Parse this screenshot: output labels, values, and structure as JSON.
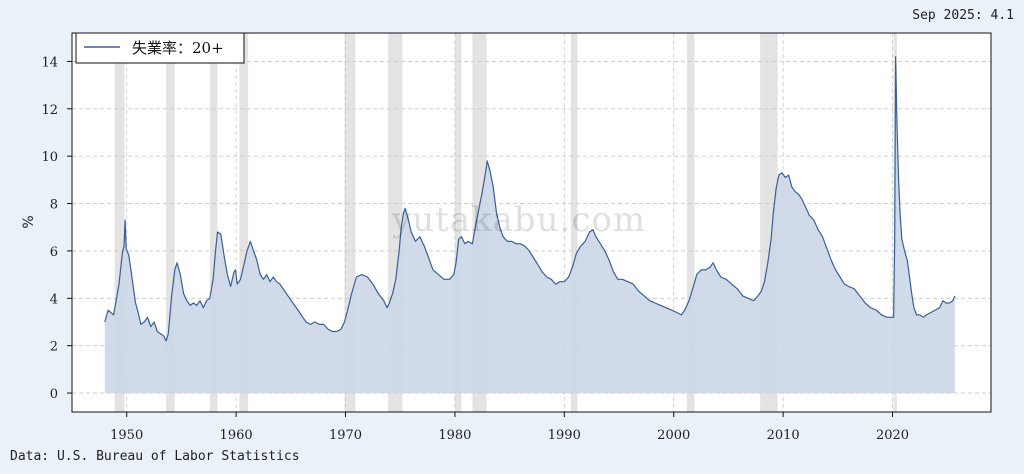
{
  "header": {
    "latest_reading": "Sep 2025: 4.1"
  },
  "footer": {
    "source": "Data: U.S. Bureau of Labor Statistics"
  },
  "watermark": "yutakabu.com",
  "colors": {
    "line": "#3a5f95",
    "fill": "#cbd6e6",
    "recession": "#e3e3e3",
    "background": "#eaf1f9"
  },
  "chart_data": {
    "type": "area",
    "ylabel": "%",
    "xlim": [
      1945,
      2029
    ],
    "ylim": [
      -0.8,
      15.2
    ],
    "x_ticks": [
      1950,
      1960,
      1970,
      1980,
      1990,
      2000,
      2010,
      2020
    ],
    "y_ticks": [
      0,
      2,
      4,
      6,
      8,
      10,
      12,
      14
    ],
    "legend": {
      "position": "top-left"
    },
    "grid": true,
    "recessions": [
      [
        1948.9,
        1949.8
      ],
      [
        1953.6,
        1954.4
      ],
      [
        1957.6,
        1958.3
      ],
      [
        1960.3,
        1961.1
      ],
      [
        1969.9,
        1970.9
      ],
      [
        1973.9,
        1975.2
      ],
      [
        1980.0,
        1980.6
      ],
      [
        1981.6,
        1982.9
      ],
      [
        1990.6,
        1991.2
      ],
      [
        2001.2,
        2001.9
      ],
      [
        2007.9,
        2009.5
      ],
      [
        2020.1,
        2020.4
      ]
    ],
    "series": [
      {
        "name": "失業率：20+",
        "points": [
          [
            1948.0,
            3.0
          ],
          [
            1948.3,
            3.5
          ],
          [
            1948.8,
            3.3
          ],
          [
            1949.3,
            4.6
          ],
          [
            1949.6,
            5.9
          ],
          [
            1949.75,
            6.2
          ],
          [
            1949.85,
            7.3
          ],
          [
            1949.95,
            6.1
          ],
          [
            1950.2,
            5.8
          ],
          [
            1950.5,
            4.8
          ],
          [
            1950.8,
            3.8
          ],
          [
            1951.0,
            3.5
          ],
          [
            1951.3,
            2.9
          ],
          [
            1951.6,
            3.0
          ],
          [
            1951.9,
            3.2
          ],
          [
            1952.2,
            2.8
          ],
          [
            1952.5,
            3.0
          ],
          [
            1952.8,
            2.6
          ],
          [
            1953.1,
            2.5
          ],
          [
            1953.4,
            2.4
          ],
          [
            1953.6,
            2.2
          ],
          [
            1953.8,
            2.5
          ],
          [
            1954.1,
            4.1
          ],
          [
            1954.4,
            5.2
          ],
          [
            1954.6,
            5.5
          ],
          [
            1954.9,
            5.0
          ],
          [
            1955.2,
            4.2
          ],
          [
            1955.5,
            3.9
          ],
          [
            1955.8,
            3.7
          ],
          [
            1956.1,
            3.8
          ],
          [
            1956.4,
            3.7
          ],
          [
            1956.7,
            3.9
          ],
          [
            1957.0,
            3.6
          ],
          [
            1957.3,
            3.9
          ],
          [
            1957.6,
            4.0
          ],
          [
            1957.9,
            4.8
          ],
          [
            1958.1,
            5.9
          ],
          [
            1958.3,
            6.8
          ],
          [
            1958.6,
            6.7
          ],
          [
            1958.9,
            5.8
          ],
          [
            1959.2,
            5.0
          ],
          [
            1959.5,
            4.5
          ],
          [
            1959.8,
            5.1
          ],
          [
            1959.95,
            5.2
          ],
          [
            1960.1,
            4.6
          ],
          [
            1960.4,
            4.8
          ],
          [
            1960.7,
            5.4
          ],
          [
            1961.0,
            6.0
          ],
          [
            1961.3,
            6.4
          ],
          [
            1961.6,
            6.0
          ],
          [
            1961.9,
            5.6
          ],
          [
            1962.2,
            5.0
          ],
          [
            1962.5,
            4.8
          ],
          [
            1962.8,
            5.0
          ],
          [
            1963.1,
            4.7
          ],
          [
            1963.4,
            4.9
          ],
          [
            1963.7,
            4.7
          ],
          [
            1964.0,
            4.6
          ],
          [
            1964.3,
            4.4
          ],
          [
            1964.6,
            4.2
          ],
          [
            1964.9,
            4.0
          ],
          [
            1965.2,
            3.8
          ],
          [
            1965.5,
            3.6
          ],
          [
            1965.8,
            3.4
          ],
          [
            1966.1,
            3.2
          ],
          [
            1966.4,
            3.0
          ],
          [
            1966.8,
            2.9
          ],
          [
            1967.2,
            3.0
          ],
          [
            1967.6,
            2.9
          ],
          [
            1968.0,
            2.9
          ],
          [
            1968.4,
            2.7
          ],
          [
            1968.8,
            2.6
          ],
          [
            1969.2,
            2.6
          ],
          [
            1969.6,
            2.7
          ],
          [
            1969.9,
            3.0
          ],
          [
            1970.2,
            3.5
          ],
          [
            1970.5,
            4.1
          ],
          [
            1970.8,
            4.6
          ],
          [
            1971.0,
            4.9
          ],
          [
            1971.5,
            5.0
          ],
          [
            1972.0,
            4.9
          ],
          [
            1972.5,
            4.6
          ],
          [
            1973.0,
            4.2
          ],
          [
            1973.5,
            3.9
          ],
          [
            1973.8,
            3.6
          ],
          [
            1974.0,
            3.8
          ],
          [
            1974.3,
            4.2
          ],
          [
            1974.6,
            4.8
          ],
          [
            1974.9,
            6.0
          ],
          [
            1975.1,
            7.0
          ],
          [
            1975.3,
            7.6
          ],
          [
            1975.45,
            7.8
          ],
          [
            1975.7,
            7.4
          ],
          [
            1976.0,
            6.8
          ],
          [
            1976.4,
            6.4
          ],
          [
            1976.8,
            6.6
          ],
          [
            1977.2,
            6.2
          ],
          [
            1977.6,
            5.7
          ],
          [
            1978.0,
            5.2
          ],
          [
            1978.5,
            5.0
          ],
          [
            1979.0,
            4.8
          ],
          [
            1979.5,
            4.8
          ],
          [
            1979.9,
            5.0
          ],
          [
            1980.1,
            5.5
          ],
          [
            1980.35,
            6.5
          ],
          [
            1980.6,
            6.6
          ],
          [
            1980.9,
            6.3
          ],
          [
            1981.2,
            6.4
          ],
          [
            1981.6,
            6.3
          ],
          [
            1981.9,
            7.1
          ],
          [
            1982.2,
            7.8
          ],
          [
            1982.5,
            8.5
          ],
          [
            1982.8,
            9.3
          ],
          [
            1982.95,
            9.8
          ],
          [
            1983.2,
            9.4
          ],
          [
            1983.5,
            8.7
          ],
          [
            1983.8,
            7.6
          ],
          [
            1984.1,
            7.0
          ],
          [
            1984.4,
            6.6
          ],
          [
            1984.8,
            6.4
          ],
          [
            1985.2,
            6.4
          ],
          [
            1985.6,
            6.3
          ],
          [
            1986.0,
            6.3
          ],
          [
            1986.4,
            6.2
          ],
          [
            1986.8,
            6.0
          ],
          [
            1987.2,
            5.7
          ],
          [
            1987.6,
            5.4
          ],
          [
            1988.0,
            5.1
          ],
          [
            1988.4,
            4.9
          ],
          [
            1988.8,
            4.8
          ],
          [
            1989.2,
            4.6
          ],
          [
            1989.6,
            4.7
          ],
          [
            1990.0,
            4.7
          ],
          [
            1990.4,
            4.9
          ],
          [
            1990.8,
            5.4
          ],
          [
            1991.1,
            5.9
          ],
          [
            1991.5,
            6.2
          ],
          [
            1991.9,
            6.4
          ],
          [
            1992.3,
            6.8
          ],
          [
            1992.6,
            6.9
          ],
          [
            1992.9,
            6.6
          ],
          [
            1993.3,
            6.3
          ],
          [
            1993.7,
            6.0
          ],
          [
            1994.1,
            5.6
          ],
          [
            1994.5,
            5.1
          ],
          [
            1994.9,
            4.8
          ],
          [
            1995.3,
            4.8
          ],
          [
            1995.8,
            4.7
          ],
          [
            1996.3,
            4.6
          ],
          [
            1996.8,
            4.3
          ],
          [
            1997.3,
            4.1
          ],
          [
            1997.8,
            3.9
          ],
          [
            1998.3,
            3.8
          ],
          [
            1998.8,
            3.7
          ],
          [
            1999.3,
            3.6
          ],
          [
            1999.8,
            3.5
          ],
          [
            2000.3,
            3.4
          ],
          [
            2000.7,
            3.3
          ],
          [
            2001.0,
            3.5
          ],
          [
            2001.4,
            3.9
          ],
          [
            2001.8,
            4.5
          ],
          [
            2002.1,
            5.0
          ],
          [
            2002.5,
            5.2
          ],
          [
            2002.9,
            5.2
          ],
          [
            2003.3,
            5.3
          ],
          [
            2003.6,
            5.5
          ],
          [
            2003.9,
            5.2
          ],
          [
            2004.3,
            4.9
          ],
          [
            2004.8,
            4.8
          ],
          [
            2005.3,
            4.6
          ],
          [
            2005.8,
            4.4
          ],
          [
            2006.3,
            4.1
          ],
          [
            2006.8,
            4.0
          ],
          [
            2007.3,
            3.9
          ],
          [
            2007.7,
            4.1
          ],
          [
            2008.0,
            4.3
          ],
          [
            2008.3,
            4.7
          ],
          [
            2008.6,
            5.5
          ],
          [
            2008.9,
            6.5
          ],
          [
            2009.1,
            7.6
          ],
          [
            2009.35,
            8.6
          ],
          [
            2009.6,
            9.2
          ],
          [
            2009.9,
            9.3
          ],
          [
            2010.2,
            9.1
          ],
          [
            2010.5,
            9.2
          ],
          [
            2010.8,
            8.7
          ],
          [
            2011.1,
            8.5
          ],
          [
            2011.4,
            8.4
          ],
          [
            2011.7,
            8.2
          ],
          [
            2012.0,
            7.9
          ],
          [
            2012.4,
            7.5
          ],
          [
            2012.8,
            7.3
          ],
          [
            2013.2,
            6.9
          ],
          [
            2013.6,
            6.6
          ],
          [
            2014.0,
            6.1
          ],
          [
            2014.4,
            5.6
          ],
          [
            2014.8,
            5.2
          ],
          [
            2015.2,
            4.9
          ],
          [
            2015.6,
            4.6
          ],
          [
            2016.0,
            4.5
          ],
          [
            2016.5,
            4.4
          ],
          [
            2017.0,
            4.1
          ],
          [
            2017.5,
            3.8
          ],
          [
            2018.0,
            3.6
          ],
          [
            2018.5,
            3.5
          ],
          [
            2019.0,
            3.3
          ],
          [
            2019.5,
            3.2
          ],
          [
            2019.9,
            3.2
          ],
          [
            2020.1,
            3.2
          ],
          [
            2020.2,
            6.5
          ],
          [
            2020.28,
            14.2
          ],
          [
            2020.4,
            11.5
          ],
          [
            2020.55,
            9.0
          ],
          [
            2020.7,
            7.5
          ],
          [
            2020.85,
            6.5
          ],
          [
            2021.1,
            6.0
          ],
          [
            2021.35,
            5.6
          ],
          [
            2021.55,
            4.9
          ],
          [
            2021.75,
            4.2
          ],
          [
            2021.95,
            3.6
          ],
          [
            2022.2,
            3.3
          ],
          [
            2022.5,
            3.3
          ],
          [
            2022.8,
            3.2
          ],
          [
            2023.1,
            3.3
          ],
          [
            2023.5,
            3.4
          ],
          [
            2023.9,
            3.5
          ],
          [
            2024.3,
            3.6
          ],
          [
            2024.6,
            3.9
          ],
          [
            2024.9,
            3.8
          ],
          [
            2025.2,
            3.8
          ],
          [
            2025.5,
            3.9
          ],
          [
            2025.7,
            4.1
          ]
        ]
      }
    ]
  }
}
